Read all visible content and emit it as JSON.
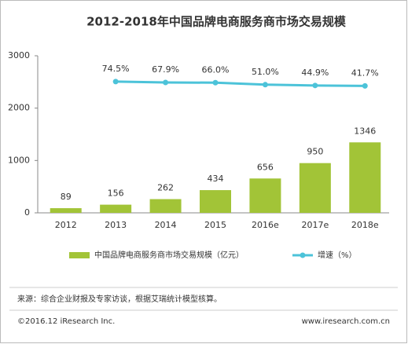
{
  "chart_data": {
    "type": "bar-line",
    "title": "2012-2018年中国品牌电商服务商市场交易规模",
    "categories": [
      "2012",
      "2013",
      "2014",
      "2015",
      "2016e",
      "2017e",
      "2018e"
    ],
    "ylim": [
      0,
      3000
    ],
    "yticks": [
      0,
      1000,
      2000,
      3000
    ],
    "y2lim": [
      -920,
      270
    ],
    "series": [
      {
        "name": "中国品牌电商服务商市场交易规模（亿元）",
        "type": "bar",
        "color": "#a2c437",
        "values": [
          89,
          156,
          262,
          434,
          656,
          950,
          1346
        ]
      },
      {
        "name": "增速（%）",
        "type": "line",
        "axis": "y2",
        "color": "#4cc3d9",
        "values": [
          null,
          74.5,
          67.9,
          66.0,
          51.0,
          44.9,
          41.7
        ],
        "value_labels": [
          null,
          "74.5%",
          "67.9%",
          "66.0%",
          "51.0%",
          "44.9%",
          "41.7%"
        ]
      }
    ],
    "legend": "bottom",
    "source": "来源：综合企业财报及专家访谈，根据艾瑞统计模型核算。",
    "copyright": "©2016.12 iResearch Inc.",
    "website": "www.iresearch.com.cn"
  }
}
